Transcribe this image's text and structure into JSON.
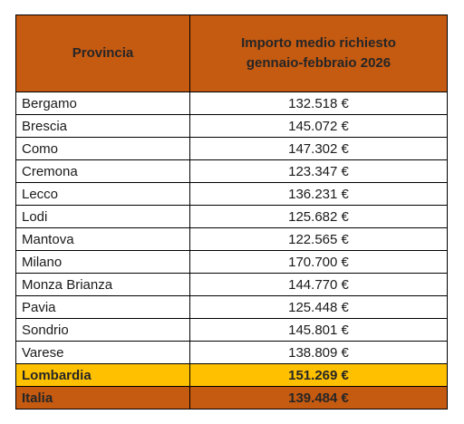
{
  "table": {
    "header": {
      "col1": "Provincia",
      "col2_line1": "Importo medio richiesto",
      "col2_line2": "gennaio-febbraio 2026"
    },
    "rows": [
      {
        "provincia": "Bergamo",
        "importo": "132.518 €"
      },
      {
        "provincia": "Brescia",
        "importo": "145.072 €"
      },
      {
        "provincia": "Como",
        "importo": "147.302 €"
      },
      {
        "provincia": "Cremona",
        "importo": "123.347 €"
      },
      {
        "provincia": "Lecco",
        "importo": "136.231 €"
      },
      {
        "provincia": "Lodi",
        "importo": "125.682 €"
      },
      {
        "provincia": "Mantova",
        "importo": "122.565 €"
      },
      {
        "provincia": "Milano",
        "importo": "170.700 €"
      },
      {
        "provincia": "Monza Brianza",
        "importo": "144.770 €"
      },
      {
        "provincia": "Pavia",
        "importo": "125.448 €"
      },
      {
        "provincia": "Sondrio",
        "importo": "145.801 €"
      },
      {
        "provincia": "Varese",
        "importo": "138.809 €"
      }
    ],
    "totals": {
      "lombardia": {
        "label": "Lombardia",
        "importo": "151.269 €"
      },
      "italia": {
        "label": "Italia",
        "importo": "139.484 €"
      }
    }
  },
  "colors": {
    "header_bg": "#c55a11",
    "lombardia_bg": "#ffc000",
    "italia_bg": "#c55a11",
    "border": "#000000"
  }
}
